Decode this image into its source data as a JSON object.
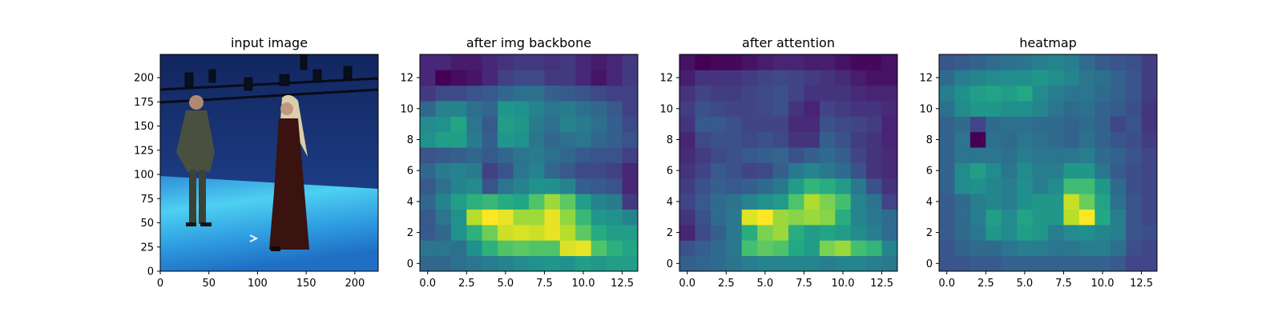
{
  "figure": {
    "background": "#ffffff"
  },
  "colormap": "viridis",
  "chart_data": [
    {
      "type": "image",
      "title": "input image",
      "xlim": [
        0,
        224
      ],
      "ylim": [
        224,
        0
      ],
      "xticks": [
        0,
        50,
        100,
        150,
        200
      ],
      "yticks": [
        0,
        25,
        50,
        75,
        100,
        125,
        150,
        175,
        200
      ],
      "content": "studio photo: blue backdrop, two people standing on a cyan floor",
      "colors": {
        "wall": "#1c3c86",
        "floor": "#46c8ee",
        "figure1_coat": "#4a5040",
        "figure2_dress": "#3a1210",
        "headscarf": "#d9cfa8"
      }
    },
    {
      "type": "heatmap",
      "title": "after img backbone",
      "xlim": [
        -0.5,
        13.5
      ],
      "ylim": [
        13.5,
        -0.5
      ],
      "xticks": [
        "0.0",
        "2.5",
        "5.0",
        "7.5",
        "10.0",
        "12.5"
      ],
      "yticks": [
        "0",
        "2",
        "4",
        "6",
        "8",
        "10",
        "12"
      ],
      "values": [
        [
          0.35,
          0.35,
          0.38,
          0.4,
          0.42,
          0.45,
          0.48,
          0.5,
          0.52,
          0.5,
          0.55,
          0.52,
          0.55,
          0.55
        ],
        [
          0.4,
          0.4,
          0.38,
          0.5,
          0.62,
          0.7,
          0.72,
          0.7,
          0.7,
          0.9,
          0.92,
          0.7,
          0.62,
          0.58
        ],
        [
          0.3,
          0.35,
          0.5,
          0.62,
          0.75,
          0.88,
          0.9,
          0.88,
          0.92,
          0.85,
          0.72,
          0.6,
          0.55,
          0.55
        ],
        [
          0.3,
          0.4,
          0.5,
          0.85,
          0.95,
          0.92,
          0.82,
          0.82,
          0.92,
          0.8,
          0.65,
          0.52,
          0.5,
          0.45
        ],
        [
          0.35,
          0.45,
          0.55,
          0.62,
          0.65,
          0.6,
          0.58,
          0.7,
          0.82,
          0.72,
          0.55,
          0.45,
          0.42,
          0.2
        ],
        [
          0.3,
          0.38,
          0.45,
          0.48,
          0.28,
          0.4,
          0.45,
          0.5,
          0.5,
          0.45,
          0.32,
          0.3,
          0.28,
          0.15
        ],
        [
          0.35,
          0.42,
          0.45,
          0.42,
          0.22,
          0.28,
          0.4,
          0.45,
          0.35,
          0.3,
          0.25,
          0.25,
          0.22,
          0.15
        ],
        [
          0.28,
          0.3,
          0.32,
          0.35,
          0.3,
          0.35,
          0.4,
          0.42,
          0.38,
          0.35,
          0.3,
          0.28,
          0.28,
          0.22
        ],
        [
          0.5,
          0.55,
          0.55,
          0.42,
          0.32,
          0.52,
          0.5,
          0.4,
          0.35,
          0.38,
          0.4,
          0.35,
          0.32,
          0.28
        ],
        [
          0.48,
          0.5,
          0.58,
          0.4,
          0.3,
          0.55,
          0.52,
          0.42,
          0.38,
          0.45,
          0.42,
          0.38,
          0.32,
          0.25
        ],
        [
          0.35,
          0.45,
          0.45,
          0.38,
          0.35,
          0.52,
          0.5,
          0.45,
          0.4,
          0.42,
          0.38,
          0.35,
          0.3,
          0.22
        ],
        [
          0.2,
          0.25,
          0.25,
          0.28,
          0.3,
          0.35,
          0.38,
          0.38,
          0.32,
          0.3,
          0.28,
          0.25,
          0.22,
          0.22
        ],
        [
          0.15,
          0.05,
          0.08,
          0.1,
          0.15,
          0.22,
          0.25,
          0.25,
          0.2,
          0.2,
          0.15,
          0.1,
          0.15,
          0.2
        ],
        [
          0.15,
          0.15,
          0.12,
          0.12,
          0.15,
          0.18,
          0.2,
          0.2,
          0.18,
          0.2,
          0.15,
          0.12,
          0.15,
          0.2
        ]
      ]
    },
    {
      "type": "heatmap",
      "title": "after attention",
      "xlim": [
        -0.5,
        13.5
      ],
      "ylim": [
        13.5,
        -0.5
      ],
      "xticks": [
        "0.0",
        "2.5",
        "5.0",
        "7.5",
        "10.0",
        "12.5"
      ],
      "yticks": [
        "0",
        "2",
        "4",
        "6",
        "8",
        "10",
        "12"
      ],
      "values": [
        [
          0.3,
          0.32,
          0.35,
          0.38,
          0.42,
          0.45,
          0.45,
          0.45,
          0.45,
          0.42,
          0.45,
          0.45,
          0.42,
          0.4
        ],
        [
          0.25,
          0.3,
          0.35,
          0.4,
          0.7,
          0.75,
          0.72,
          0.6,
          0.55,
          0.8,
          0.85,
          0.7,
          0.65,
          0.45
        ],
        [
          0.1,
          0.22,
          0.3,
          0.4,
          0.62,
          0.8,
          0.85,
          0.62,
          0.55,
          0.58,
          0.55,
          0.48,
          0.42,
          0.35
        ],
        [
          0.15,
          0.25,
          0.35,
          0.4,
          0.95,
          1.0,
          0.85,
          0.82,
          0.85,
          0.82,
          0.62,
          0.45,
          0.4,
          0.35
        ],
        [
          0.2,
          0.28,
          0.35,
          0.38,
          0.45,
          0.5,
          0.55,
          0.72,
          0.88,
          0.8,
          0.7,
          0.45,
          0.38,
          0.2
        ],
        [
          0.18,
          0.25,
          0.3,
          0.28,
          0.3,
          0.35,
          0.4,
          0.55,
          0.65,
          0.62,
          0.55,
          0.4,
          0.25,
          0.15
        ],
        [
          0.15,
          0.2,
          0.28,
          0.25,
          0.2,
          0.22,
          0.3,
          0.4,
          0.45,
          0.4,
          0.35,
          0.25,
          0.15,
          0.12
        ],
        [
          0.12,
          0.18,
          0.22,
          0.25,
          0.28,
          0.3,
          0.32,
          0.25,
          0.3,
          0.35,
          0.3,
          0.2,
          0.15,
          0.12
        ],
        [
          0.1,
          0.22,
          0.25,
          0.25,
          0.22,
          0.25,
          0.22,
          0.15,
          0.15,
          0.3,
          0.25,
          0.18,
          0.15,
          0.1
        ],
        [
          0.15,
          0.28,
          0.28,
          0.25,
          0.2,
          0.2,
          0.2,
          0.12,
          0.12,
          0.25,
          0.22,
          0.2,
          0.18,
          0.1
        ],
        [
          0.18,
          0.25,
          0.22,
          0.2,
          0.2,
          0.22,
          0.25,
          0.15,
          0.1,
          0.2,
          0.18,
          0.15,
          0.15,
          0.12
        ],
        [
          0.15,
          0.2,
          0.18,
          0.18,
          0.2,
          0.22,
          0.25,
          0.2,
          0.15,
          0.15,
          0.15,
          0.12,
          0.1,
          0.1
        ],
        [
          0.08,
          0.15,
          0.15,
          0.15,
          0.18,
          0.2,
          0.22,
          0.2,
          0.18,
          0.15,
          0.12,
          0.08,
          0.05,
          0.05
        ],
        [
          0.05,
          0.0,
          0.02,
          0.02,
          0.05,
          0.08,
          0.1,
          0.1,
          0.08,
          0.08,
          0.05,
          0.02,
          0.02,
          0.05
        ]
      ]
    },
    {
      "type": "heatmap",
      "title": "heatmap",
      "xlim": [
        -0.5,
        13.5
      ],
      "ylim": [
        13.5,
        -0.5
      ],
      "xticks": [
        "0.0",
        "2.5",
        "5.0",
        "7.5",
        "10.0",
        "12.5"
      ],
      "yticks": [
        "0",
        "2",
        "4",
        "6",
        "8",
        "10",
        "12"
      ],
      "values": [
        [
          0.3,
          0.3,
          0.32,
          0.32,
          0.35,
          0.35,
          0.35,
          0.35,
          0.35,
          0.35,
          0.35,
          0.32,
          0.25,
          0.25
        ],
        [
          0.3,
          0.35,
          0.38,
          0.38,
          0.42,
          0.45,
          0.45,
          0.42,
          0.42,
          0.45,
          0.45,
          0.4,
          0.28,
          0.25
        ],
        [
          0.32,
          0.38,
          0.42,
          0.55,
          0.5,
          0.58,
          0.55,
          0.45,
          0.5,
          0.52,
          0.48,
          0.45,
          0.3,
          0.28
        ],
        [
          0.32,
          0.38,
          0.45,
          0.58,
          0.5,
          0.6,
          0.55,
          0.55,
          0.9,
          1.0,
          0.62,
          0.45,
          0.3,
          0.25
        ],
        [
          0.32,
          0.38,
          0.45,
          0.48,
          0.45,
          0.52,
          0.55,
          0.55,
          0.92,
          0.78,
          0.6,
          0.4,
          0.3,
          0.25
        ],
        [
          0.35,
          0.5,
          0.52,
          0.48,
          0.45,
          0.52,
          0.45,
          0.5,
          0.7,
          0.7,
          0.55,
          0.38,
          0.28,
          0.25
        ],
        [
          0.35,
          0.5,
          0.58,
          0.5,
          0.42,
          0.5,
          0.45,
          0.45,
          0.55,
          0.55,
          0.42,
          0.32,
          0.28,
          0.25
        ],
        [
          0.35,
          0.42,
          0.42,
          0.42,
          0.4,
          0.45,
          0.42,
          0.42,
          0.42,
          0.45,
          0.38,
          0.35,
          0.3,
          0.25
        ],
        [
          0.35,
          0.42,
          0.05,
          0.4,
          0.38,
          0.42,
          0.4,
          0.38,
          0.35,
          0.4,
          0.35,
          0.3,
          0.28,
          0.22
        ],
        [
          0.35,
          0.38,
          0.25,
          0.38,
          0.4,
          0.4,
          0.38,
          0.38,
          0.35,
          0.38,
          0.35,
          0.25,
          0.3,
          0.2
        ],
        [
          0.4,
          0.5,
          0.55,
          0.55,
          0.52,
          0.52,
          0.48,
          0.42,
          0.38,
          0.4,
          0.35,
          0.32,
          0.28,
          0.2
        ],
        [
          0.45,
          0.52,
          0.58,
          0.6,
          0.58,
          0.62,
          0.5,
          0.45,
          0.42,
          0.42,
          0.38,
          0.35,
          0.3,
          0.22
        ],
        [
          0.38,
          0.45,
          0.48,
          0.5,
          0.52,
          0.52,
          0.55,
          0.52,
          0.48,
          0.42,
          0.4,
          0.35,
          0.3,
          0.22
        ],
        [
          0.3,
          0.32,
          0.35,
          0.38,
          0.4,
          0.42,
          0.45,
          0.48,
          0.45,
          0.38,
          0.32,
          0.3,
          0.28,
          0.22
        ]
      ]
    }
  ]
}
